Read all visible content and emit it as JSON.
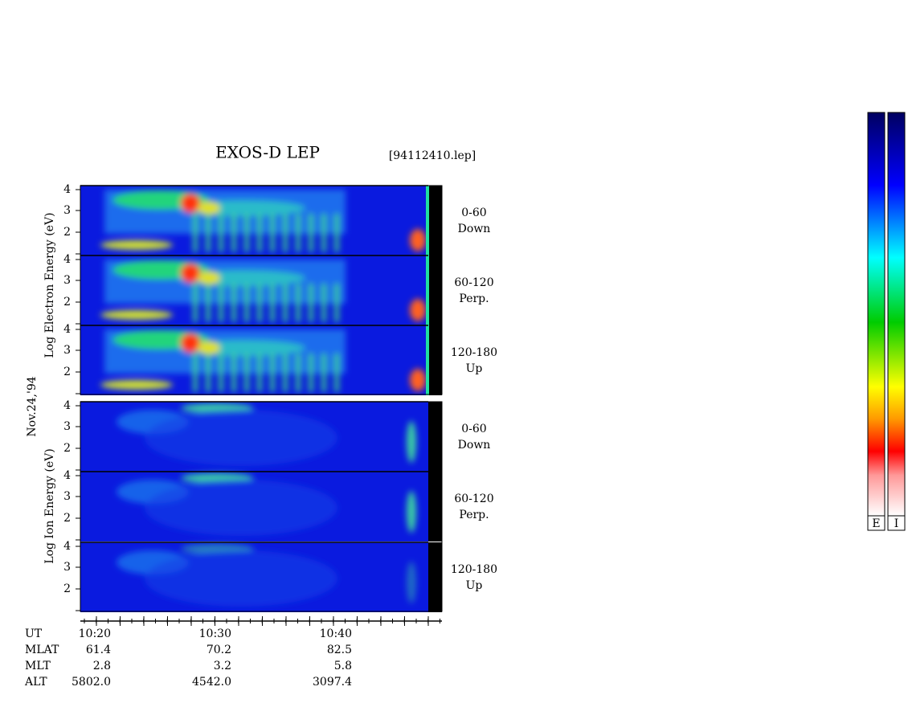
{
  "header": {
    "title": "EXOS-D LEP",
    "file": "[94112410.lep]"
  },
  "axes": {
    "electron_label": "Log Electron Energy (eV)",
    "ion_label": "Log Ion Energy (eV)",
    "date": "Nov.24,'94",
    "y_ticks": [
      "2",
      "3",
      "4"
    ]
  },
  "electron_panels": [
    {
      "angle": "0-60",
      "direction": "Down"
    },
    {
      "angle": "60-120",
      "direction": "Perp."
    },
    {
      "angle": "120-180",
      "direction": "Up"
    }
  ],
  "ion_panels": [
    {
      "angle": "0-60",
      "direction": "Down"
    },
    {
      "angle": "60-120",
      "direction": "Perp."
    },
    {
      "angle": "120-180",
      "direction": "Up"
    }
  ],
  "footer": {
    "rows": [
      {
        "label": "UT",
        "values": [
          "10:20",
          "10:30",
          "10:40"
        ]
      },
      {
        "label": "MLAT",
        "values": [
          "61.4",
          "70.2",
          "82.5"
        ]
      },
      {
        "label": "MLT",
        "values": [
          "2.8",
          "3.2",
          "5.8"
        ]
      },
      {
        "label": "ALT",
        "values": [
          "5802.0",
          "4542.0",
          "3097.4"
        ]
      }
    ]
  },
  "colorbars": [
    "E",
    "I"
  ]
}
